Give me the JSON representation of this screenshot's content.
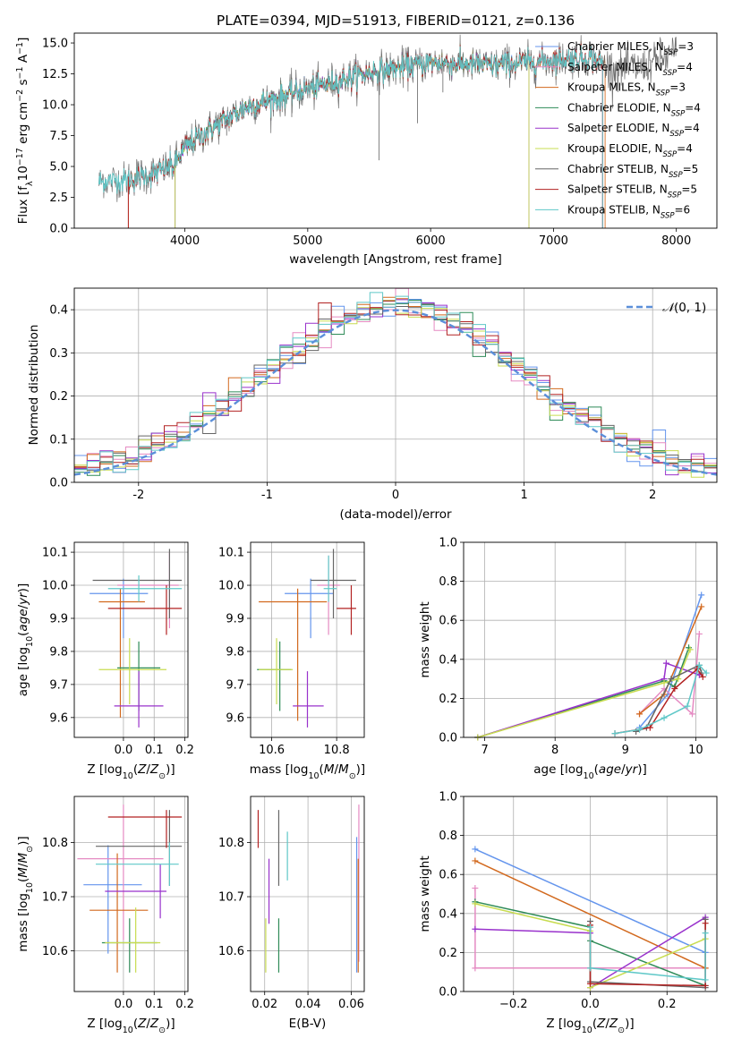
{
  "figure": {
    "title": "PLATE=0394, MJD=51913, FIBERID=0121, z=0.136"
  },
  "chart_data": [
    {
      "id": "spectrum",
      "type": "line",
      "xlabel": "wavelength [Angstrom, rest frame]",
      "ylabel": "Flux [f_λ 10^-17 erg cm^-2 s^-1 A^-1]",
      "xlim": [
        3100,
        8330
      ],
      "ylim": [
        0,
        15.8
      ],
      "xticks": [
        4000,
        5000,
        6000,
        7000,
        8000
      ],
      "yticks": [
        0.0,
        2.5,
        5.0,
        7.5,
        10.0,
        12.5,
        15.0
      ],
      "grid": false,
      "legend": "top-right",
      "continuum": {
        "x": [
          3300,
          3500,
          3700,
          3900,
          4000,
          4200,
          4500,
          5000,
          5500,
          6000,
          6500,
          7000,
          7300,
          7500,
          7700,
          7900,
          8000
        ],
        "y": [
          3.8,
          3.9,
          4.3,
          5.0,
          6.5,
          8.0,
          9.8,
          11.3,
          12.6,
          13.4,
          13.2,
          13.6,
          13.8,
          12.9,
          13.0,
          13.8,
          14.2
        ]
      },
      "series": [
        {
          "name": "Chabrier MILES, N_SSP=3",
          "color": "#6495ed",
          "xrange": [
            3540,
            7400
          ]
        },
        {
          "name": "Salpeter MILES, N_SSP=4",
          "color": "#e58ac2",
          "xrange": [
            3540,
            7400
          ]
        },
        {
          "name": "Kroupa MILES, N_SSP=3",
          "color": "#d2691e",
          "xrange": [
            3540,
            7420
          ]
        },
        {
          "name": "Chabrier ELODIE, N_SSP=4",
          "color": "#2e8b57",
          "xrange": [
            3920,
            6800
          ]
        },
        {
          "name": "Salpeter ELODIE, N_SSP=4",
          "color": "#9932cc",
          "xrange": [
            3920,
            6800
          ]
        },
        {
          "name": "Kroupa ELODIE, N_SSP=4",
          "color": "#c8dc50",
          "xrange": [
            3920,
            6800
          ]
        },
        {
          "name": "Chabrier STELIB, N_SSP=5",
          "color": "#666666",
          "xrange": [
            3300,
            8000
          ]
        },
        {
          "name": "Salpeter STELIB, N_SSP=5",
          "color": "#b22222",
          "xrange": [
            3540,
            7400
          ]
        },
        {
          "name": "Kroupa STELIB, N_SSP=6",
          "color": "#5fc8c8",
          "xrange": [
            3300,
            7400
          ]
        }
      ]
    },
    {
      "id": "residuals",
      "type": "histogram",
      "xlabel": "(data-model)/error",
      "ylabel": "Normed distribution",
      "xlim": [
        -2.5,
        2.5
      ],
      "ylim": [
        0,
        0.45
      ],
      "xticks": [
        -2,
        -1,
        0,
        1,
        2
      ],
      "yticks": [
        0.0,
        0.1,
        0.2,
        0.3,
        0.4
      ],
      "grid": true,
      "legend": "top-right",
      "normal_label": "N(0,1)",
      "bin_width": 0.1,
      "series_colors": [
        "#6495ed",
        "#e58ac2",
        "#d2691e",
        "#2e8b57",
        "#9932cc",
        "#c8dc50",
        "#666666",
        "#b22222",
        "#5fc8c8"
      ]
    },
    {
      "id": "age-vs-Z",
      "type": "errorbar",
      "xlabel": "Z [log10(Z/Z⊙)]",
      "ylabel": "age  [log10(age/yr)]",
      "xlim": [
        -0.16,
        0.21
      ],
      "ylim": [
        9.54,
        10.13
      ],
      "xticks": [
        0.0,
        0.1,
        0.2
      ],
      "xticklabels": [
        "0.0",
        "0.1",
        "0.2"
      ],
      "yticks": [
        9.6,
        9.7,
        9.8,
        9.9,
        10.0,
        10.1
      ],
      "grid": true,
      "points": [
        {
          "x": 0.0,
          "y": 9.975,
          "xlo": -0.11,
          "xhi": 0.08,
          "ylo": 9.84,
          "yhi": 10.02,
          "color": "#6495ed"
        },
        {
          "x": 0.15,
          "y": 10.0,
          "xlo": -0.02,
          "xhi": 0.18,
          "ylo": 9.87,
          "yhi": 10.1,
          "color": "#e58ac2"
        },
        {
          "x": -0.01,
          "y": 9.95,
          "xlo": -0.08,
          "xhi": 0.07,
          "ylo": 9.6,
          "yhi": 9.99,
          "color": "#d2691e"
        },
        {
          "x": 0.05,
          "y": 9.75,
          "xlo": -0.02,
          "xhi": 0.12,
          "ylo": 9.62,
          "yhi": 9.83,
          "color": "#2e8b57"
        },
        {
          "x": 0.05,
          "y": 9.635,
          "xlo": -0.03,
          "xhi": 0.13,
          "ylo": 9.57,
          "yhi": 9.74,
          "color": "#9932cc"
        },
        {
          "x": 0.02,
          "y": 9.745,
          "xlo": -0.08,
          "xhi": 0.14,
          "ylo": 9.64,
          "yhi": 9.84,
          "color": "#c8dc50"
        },
        {
          "x": 0.15,
          "y": 10.015,
          "xlo": -0.1,
          "xhi": 0.19,
          "ylo": 9.9,
          "yhi": 10.11,
          "color": "#666666"
        },
        {
          "x": 0.14,
          "y": 9.93,
          "xlo": -0.05,
          "xhi": 0.19,
          "ylo": 9.85,
          "yhi": 10.0,
          "color": "#b22222"
        },
        {
          "x": 0.05,
          "y": 9.99,
          "xlo": -0.05,
          "xhi": 0.19,
          "ylo": 9.95,
          "yhi": 10.03,
          "color": "#5fc8c8"
        }
      ]
    },
    {
      "id": "age-vs-mass",
      "type": "errorbar",
      "xlabel": "mass [log10(M/M⊙)]",
      "ylabel": "",
      "xlim": [
        10.535,
        10.885
      ],
      "ylim": [
        9.54,
        10.13
      ],
      "xticks": [
        10.6,
        10.8
      ],
      "xticklabels": [
        "10.6",
        "10.8"
      ],
      "yticks": [
        9.6,
        9.7,
        9.8,
        9.9,
        10.0,
        10.1
      ],
      "grid": true,
      "points": [
        {
          "x": 10.72,
          "y": 9.975,
          "xlo": 10.64,
          "xhi": 10.79,
          "ylo": 9.84,
          "yhi": 10.02,
          "color": "#6495ed"
        },
        {
          "x": 10.775,
          "y": 10.0,
          "xlo": 10.74,
          "xhi": 10.81,
          "ylo": 9.85,
          "yhi": 10.09,
          "color": "#e58ac2"
        },
        {
          "x": 10.68,
          "y": 9.95,
          "xlo": 10.56,
          "xhi": 10.77,
          "ylo": 9.59,
          "yhi": 9.99,
          "color": "#d2691e"
        },
        {
          "x": 10.625,
          "y": 9.745,
          "xlo": 10.555,
          "xhi": 10.66,
          "ylo": 9.62,
          "yhi": 9.83,
          "color": "#2e8b57"
        },
        {
          "x": 10.71,
          "y": 9.635,
          "xlo": 10.665,
          "xhi": 10.76,
          "ylo": 9.57,
          "yhi": 9.74,
          "color": "#9932cc"
        },
        {
          "x": 10.615,
          "y": 9.745,
          "xlo": 10.56,
          "xhi": 10.665,
          "ylo": 9.64,
          "yhi": 9.84,
          "color": "#c8dc50"
        },
        {
          "x": 10.79,
          "y": 10.015,
          "xlo": 10.72,
          "xhi": 10.86,
          "ylo": 9.9,
          "yhi": 10.11,
          "color": "#666666"
        },
        {
          "x": 10.845,
          "y": 9.93,
          "xlo": 10.8,
          "xhi": 10.86,
          "ylo": 9.85,
          "yhi": 10.0,
          "color": "#b22222"
        },
        {
          "x": 10.775,
          "y": 9.99,
          "xlo": 10.76,
          "xhi": 10.8,
          "ylo": 9.95,
          "yhi": 10.09,
          "color": "#5fc8c8"
        }
      ]
    },
    {
      "id": "weight-vs-age",
      "type": "line",
      "xlabel": "age  [log10(age/yr)]",
      "ylabel": "mass weight",
      "xlim": [
        6.7,
        10.3
      ],
      "ylim": [
        0,
        1.0
      ],
      "xticks": [
        7,
        8,
        9,
        10
      ],
      "yticks": [
        0.0,
        0.2,
        0.4,
        0.6,
        0.8,
        1.0
      ],
      "grid": true,
      "series": [
        {
          "color": "#6495ed",
          "x": [
            9.2,
            9.6,
            10.08
          ],
          "y": [
            0.05,
            0.22,
            0.73
          ]
        },
        {
          "color": "#e58ac2",
          "x": [
            9.2,
            9.55,
            9.95,
            10.05
          ],
          "y": [
            0.12,
            0.25,
            0.12,
            0.53
          ]
        },
        {
          "color": "#d2691e",
          "x": [
            9.2,
            9.55,
            10.08
          ],
          "y": [
            0.12,
            0.22,
            0.67
          ]
        },
        {
          "color": "#2e8b57",
          "x": [
            6.9,
            9.55,
            9.7,
            9.9
          ],
          "y": [
            0.0,
            0.29,
            0.26,
            0.46
          ]
        },
        {
          "color": "#9932cc",
          "x": [
            6.9,
            9.55,
            9.58,
            10.05
          ],
          "y": [
            0.0,
            0.3,
            0.38,
            0.32
          ]
        },
        {
          "color": "#c8dc50",
          "x": [
            6.9,
            9.55,
            9.75,
            9.92
          ],
          "y": [
            0.0,
            0.28,
            0.3,
            0.45
          ]
        },
        {
          "color": "#666666",
          "x": [
            9.15,
            9.3,
            9.65,
            10.05,
            10.08
          ],
          "y": [
            0.03,
            0.05,
            0.3,
            0.37,
            0.33
          ]
        },
        {
          "color": "#b22222",
          "x": [
            8.85,
            9.35,
            9.7,
            10.02,
            10.1
          ],
          "y": [
            0.02,
            0.05,
            0.25,
            0.35,
            0.31
          ]
        },
        {
          "color": "#5fc8c8",
          "x": [
            8.85,
            9.2,
            9.55,
            9.88,
            10.05,
            10.15
          ],
          "y": [
            0.02,
            0.04,
            0.1,
            0.16,
            0.37,
            0.33
          ]
        }
      ]
    },
    {
      "id": "mass-vs-Z",
      "type": "errorbar",
      "xlabel": "Z [log10(Z/Z⊙)]",
      "ylabel": "mass [log10(M/M⊙)]",
      "xlim": [
        -0.16,
        0.21
      ],
      "ylim": [
        10.525,
        10.885
      ],
      "xticks": [
        0.0,
        0.1,
        0.2
      ],
      "xticklabels": [
        "0.0",
        "0.1",
        "0.2"
      ],
      "yticks": [
        10.6,
        10.7,
        10.8
      ],
      "grid": true,
      "points": [
        {
          "x": -0.05,
          "y": 10.722,
          "xlo": -0.13,
          "xhi": 0.06,
          "ylo": 10.595,
          "yhi": 10.795,
          "color": "#6495ed"
        },
        {
          "x": 0.0,
          "y": 10.77,
          "xlo": -0.15,
          "xhi": 0.13,
          "ylo": 10.62,
          "yhi": 10.87,
          "color": "#e58ac2"
        },
        {
          "x": -0.02,
          "y": 10.675,
          "xlo": -0.11,
          "xhi": 0.08,
          "ylo": 10.56,
          "yhi": 10.78,
          "color": "#d2691e"
        },
        {
          "x": 0.02,
          "y": 10.615,
          "xlo": -0.07,
          "xhi": 0.11,
          "ylo": 10.56,
          "yhi": 10.66,
          "color": "#2e8b57"
        },
        {
          "x": 0.12,
          "y": 10.71,
          "xlo": -0.06,
          "xhi": 0.14,
          "ylo": 10.66,
          "yhi": 10.76,
          "color": "#9932cc"
        },
        {
          "x": 0.04,
          "y": 10.615,
          "xlo": -0.06,
          "xhi": 0.12,
          "ylo": 10.56,
          "yhi": 10.68,
          "color": "#c8dc50"
        },
        {
          "x": 0.15,
          "y": 10.793,
          "xlo": -0.09,
          "xhi": 0.19,
          "ylo": 10.72,
          "yhi": 10.86,
          "color": "#666666"
        },
        {
          "x": 0.14,
          "y": 10.847,
          "xlo": -0.05,
          "xhi": 0.19,
          "ylo": 10.79,
          "yhi": 10.86,
          "color": "#b22222"
        },
        {
          "x": 0.15,
          "y": 10.76,
          "xlo": -0.09,
          "xhi": 0.18,
          "ylo": 10.72,
          "yhi": 10.8,
          "color": "#5fc8c8"
        }
      ]
    },
    {
      "id": "mass-vs-EBV",
      "type": "errorbar",
      "xlabel": "E(B-V)",
      "ylabel": "",
      "xlim": [
        0.0135,
        0.066
      ],
      "ylim": [
        10.525,
        10.885
      ],
      "xticks": [
        0.02,
        0.04,
        0.06
      ],
      "xticklabels": [
        "0.02",
        "0.04",
        "0.06"
      ],
      "yticks": [
        10.6,
        10.7,
        10.8
      ],
      "grid": true,
      "points": [
        {
          "x": 0.0625,
          "y": 10.72,
          "xlo": 0.0625,
          "xhi": 0.0625,
          "ylo": 10.56,
          "yhi": 10.81,
          "color": "#6495ed"
        },
        {
          "x": 0.0635,
          "y": 10.72,
          "xlo": 0.0635,
          "xhi": 0.0635,
          "ylo": 10.58,
          "yhi": 10.87,
          "color": "#e58ac2"
        },
        {
          "x": 0.0632,
          "y": 10.67,
          "xlo": 0.0632,
          "xhi": 0.0632,
          "ylo": 10.56,
          "yhi": 10.77,
          "color": "#d2691e"
        },
        {
          "x": 0.0265,
          "y": 10.62,
          "xlo": 0.0265,
          "xhi": 0.0265,
          "ylo": 10.56,
          "yhi": 10.66,
          "color": "#2e8b57"
        },
        {
          "x": 0.022,
          "y": 10.7,
          "xlo": 0.022,
          "xhi": 0.022,
          "ylo": 10.65,
          "yhi": 10.77,
          "color": "#9932cc"
        },
        {
          "x": 0.0205,
          "y": 10.61,
          "xlo": 0.0205,
          "xhi": 0.0205,
          "ylo": 10.56,
          "yhi": 10.66,
          "color": "#c8dc50"
        },
        {
          "x": 0.0265,
          "y": 10.79,
          "xlo": 0.0265,
          "xhi": 0.0265,
          "ylo": 10.72,
          "yhi": 10.86,
          "color": "#666666"
        },
        {
          "x": 0.017,
          "y": 10.82,
          "xlo": 0.017,
          "xhi": 0.017,
          "ylo": 10.79,
          "yhi": 10.86,
          "color": "#b22222"
        },
        {
          "x": 0.0305,
          "y": 10.77,
          "xlo": 0.0305,
          "xhi": 0.0305,
          "ylo": 10.73,
          "yhi": 10.82,
          "color": "#5fc8c8"
        }
      ]
    },
    {
      "id": "weight-vs-Z",
      "type": "line",
      "xlabel": "Z [log10(Z/Z⊙)]",
      "ylabel": "mass weight",
      "xlim": [
        -0.33,
        0.33
      ],
      "ylim": [
        0,
        1.0
      ],
      "xticks": [
        -0.2,
        0.0,
        0.2
      ],
      "xticklabels": [
        "−0.2",
        "0.0",
        "0.2"
      ],
      "yticks": [
        0.0,
        0.2,
        0.4,
        0.6,
        0.8,
        1.0
      ],
      "grid": true,
      "series": [
        {
          "color": "#6495ed",
          "x": [
            -0.3,
            0.3
          ],
          "y": [
            0.73,
            0.2
          ]
        },
        {
          "color": "#e58ac2",
          "x": [
            -0.3,
            -0.3,
            0.3
          ],
          "y": [
            0.53,
            0.12,
            0.12
          ]
        },
        {
          "color": "#d2691e",
          "x": [
            -0.3,
            0.3
          ],
          "y": [
            0.67,
            0.12
          ]
        },
        {
          "color": "#2e8b57",
          "x": [
            -0.3,
            0.0,
            0.0,
            0.3
          ],
          "y": [
            0.46,
            0.33,
            0.26,
            0.03
          ]
        },
        {
          "color": "#9932cc",
          "x": [
            -0.3,
            0.0,
            0.0,
            0.3
          ],
          "y": [
            0.32,
            0.3,
            0.02,
            0.38
          ]
        },
        {
          "color": "#c8dc50",
          "x": [
            -0.3,
            0.0,
            0.0,
            0.3
          ],
          "y": [
            0.45,
            0.31,
            0.02,
            0.27
          ]
        },
        {
          "color": "#666666",
          "x": [
            0.0,
            0.0,
            0.3,
            0.3
          ],
          "y": [
            0.36,
            0.05,
            0.02,
            0.37
          ]
        },
        {
          "color": "#b22222",
          "x": [
            0.0,
            0.0,
            0.3,
            0.3
          ],
          "y": [
            0.34,
            0.04,
            0.03,
            0.35
          ]
        },
        {
          "color": "#5fc8c8",
          "x": [
            0.0,
            0.0,
            0.3,
            0.3
          ],
          "y": [
            0.33,
            0.12,
            0.06,
            0.3
          ]
        }
      ]
    }
  ]
}
